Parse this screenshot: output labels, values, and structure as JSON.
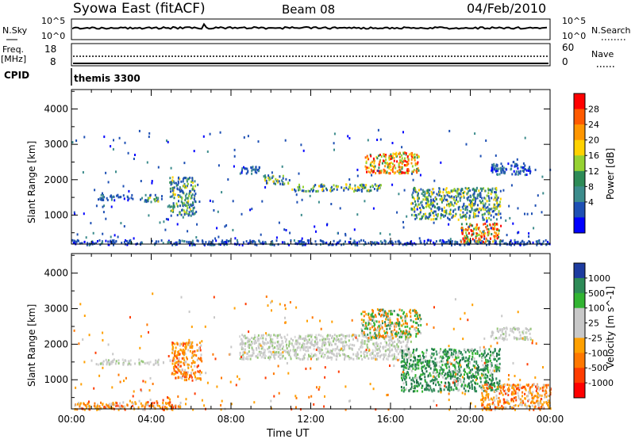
{
  "header": {
    "station": "Syowa East (fitACF)",
    "beam": "Beam 08",
    "date": "04/Feb/2010"
  },
  "top_panels": {
    "nsky_label": "N.Sky",
    "nsearch_label": "N.Search",
    "nsky_ticks": [
      "10^5",
      "10^0"
    ],
    "nsearch_ticks": [
      "10^5",
      "10^0"
    ],
    "freq_label": "Freq.",
    "freq_unit": "[MHz]",
    "freq_ticks": [
      "18",
      "8"
    ],
    "nave_label": "Nave",
    "nave_ticks": [
      "60",
      "0"
    ],
    "cpid_label": "CPID",
    "cpid_value": "themis 3300"
  },
  "chart_data": [
    {
      "type": "heatmap",
      "panel": "power",
      "ylabel": "Slant Range [km]",
      "yticks": [
        1000,
        2000,
        3000,
        4000
      ],
      "ylim": [
        180,
        4550
      ],
      "xticks": [
        "00:00",
        "04:00",
        "08:00",
        "12:00",
        "16:00",
        "20:00",
        "00:00"
      ],
      "xlim_hours": [
        0,
        24
      ],
      "colorbar": {
        "label": "Power [dB]",
        "ticks": [
          "28",
          "24",
          "20",
          "16",
          "12",
          "8",
          "4"
        ],
        "colors": [
          "#ff0000",
          "#ff5a00",
          "#ff9600",
          "#ffd200",
          "#96d232",
          "#2e8b57",
          "#3c8c8c",
          "#1e50b4",
          "#0000ff"
        ]
      },
      "bands": [
        {
          "t": [
            0.0,
            24.0
          ],
          "r": [
            180,
            320
          ],
          "color": "power_low"
        },
        {
          "t": [
            1.2,
            3.1
          ],
          "r": [
            1450,
            1600
          ],
          "color": "power_low"
        },
        {
          "t": [
            3.4,
            4.5
          ],
          "r": [
            1400,
            1600
          ],
          "color": "power_mid"
        },
        {
          "t": [
            4.9,
            6.2
          ],
          "r": [
            1000,
            2100
          ],
          "color": "power_mid"
        },
        {
          "t": [
            8.4,
            9.5
          ],
          "r": [
            2200,
            2400
          ],
          "color": "power_low"
        },
        {
          "t": [
            9.6,
            10.9
          ],
          "r": [
            1900,
            2150
          ],
          "color": "power_mid"
        },
        {
          "t": [
            11.0,
            15.5
          ],
          "r": [
            1700,
            1900
          ],
          "color": "power_mid"
        },
        {
          "t": [
            14.7,
            17.4
          ],
          "r": [
            2200,
            2800
          ],
          "color": "power_high"
        },
        {
          "t": [
            17.0,
            21.5
          ],
          "r": [
            900,
            1800
          ],
          "color": "power_mid"
        },
        {
          "t": [
            19.5,
            21.5
          ],
          "r": [
            250,
            800
          ],
          "color": "power_high"
        },
        {
          "t": [
            21.0,
            23.0
          ],
          "r": [
            2150,
            2500
          ],
          "color": "power_low"
        }
      ]
    },
    {
      "type": "heatmap",
      "panel": "velocity",
      "xlabel": "Time UT",
      "ylabel": "Slant Range [km]",
      "yticks": [
        1000,
        2000,
        3000,
        4000
      ],
      "ylim": [
        180,
        4550
      ],
      "xticks": [
        "00:00",
        "04:00",
        "08:00",
        "12:00",
        "16:00",
        "20:00",
        "00:00"
      ],
      "xlim_hours": [
        0,
        24
      ],
      "colorbar": {
        "label": "Velocity [m s^-1]",
        "ticks": [
          "1000",
          "500",
          "100",
          "25",
          "-25",
          "-100",
          "-500",
          "-1000"
        ],
        "colors": [
          "#1e3ca0",
          "#2e8b57",
          "#32b432",
          "#c8c8c8",
          "#c8c8c8",
          "#ffa000",
          "#ff7800",
          "#ff3c00",
          "#ff0000"
        ]
      },
      "bands": [
        {
          "t": [
            0.0,
            5.5
          ],
          "r": [
            180,
            400
          ],
          "color": "vel_neg"
        },
        {
          "t": [
            5.0,
            6.5
          ],
          "r": [
            1000,
            2100
          ],
          "color": "vel_neg"
        },
        {
          "t": [
            1.2,
            5.0
          ],
          "r": [
            1450,
            1600
          ],
          "color": "vel_zero"
        },
        {
          "t": [
            8.4,
            17.0
          ],
          "r": [
            1600,
            2300
          ],
          "color": "vel_zero"
        },
        {
          "t": [
            14.5,
            17.5
          ],
          "r": [
            2200,
            3000
          ],
          "color": "vel_mix"
        },
        {
          "t": [
            16.5,
            21.5
          ],
          "r": [
            700,
            1900
          ],
          "color": "vel_pos"
        },
        {
          "t": [
            20.5,
            24.0
          ],
          "r": [
            180,
            900
          ],
          "color": "vel_neg"
        },
        {
          "t": [
            21.0,
            23.0
          ],
          "r": [
            2150,
            2500
          ],
          "color": "vel_zero"
        }
      ]
    }
  ]
}
